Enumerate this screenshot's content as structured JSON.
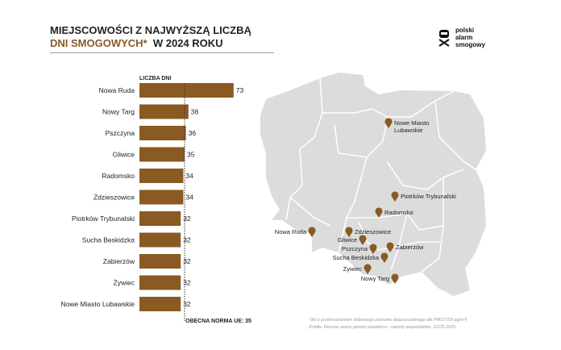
{
  "header": {
    "title_line1": "MIEJSCOWOŚCI Z NAJWYŻSZĄ LICZBĄ",
    "title_highlight": "DNI SMOGOWYCH*",
    "title_rest": "W 2024 ROKU"
  },
  "logo": {
    "text": [
      "polski",
      "alarm",
      "smogowy"
    ],
    "icon": "gas-mask-icon"
  },
  "colors": {
    "bar": "#8a5a23",
    "accent": "#8a5a23",
    "map": "#dcdcdc"
  },
  "chart_data": {
    "type": "bar",
    "orientation": "horizontal",
    "xlabel": "LICZBA DNI",
    "categories": [
      "Nowa Ruda",
      "Nowy Targ",
      "Pszczyna",
      "Gliwice",
      "Radomsko",
      "Zdzieszowice",
      "Piotrków Trybunalski",
      "Sucha Beskidzka",
      "Zabierzów",
      "Żywiec",
      "Nowe Miasto Lubawskie"
    ],
    "values": [
      73,
      38,
      36,
      35,
      34,
      34,
      32,
      32,
      32,
      32,
      32
    ],
    "reference_line": {
      "value": 35,
      "label": "OBECNA NORMA UE: 35"
    }
  },
  "map": {
    "pins": [
      "Nowe Miasto",
      "Lubawskie",
      "Piotrków Trybunalski",
      "Radomsko",
      "Nowa Ruda",
      "Zdzieszowice",
      "Gliwice",
      "Pszczyna",
      "Zabierzów",
      "Sucha Beskidzka",
      "Żywiec",
      "Nowy Targ"
    ]
  },
  "footnote": {
    "line1": "*dni z przekroczeniem dobowego poziomu dopuszczalnego dla PM10 (50 µg/m³)",
    "line2": "Źródło: Roczne oceny jakości powietrza - raporty wojewódzkie, GIOŚ 2025"
  }
}
